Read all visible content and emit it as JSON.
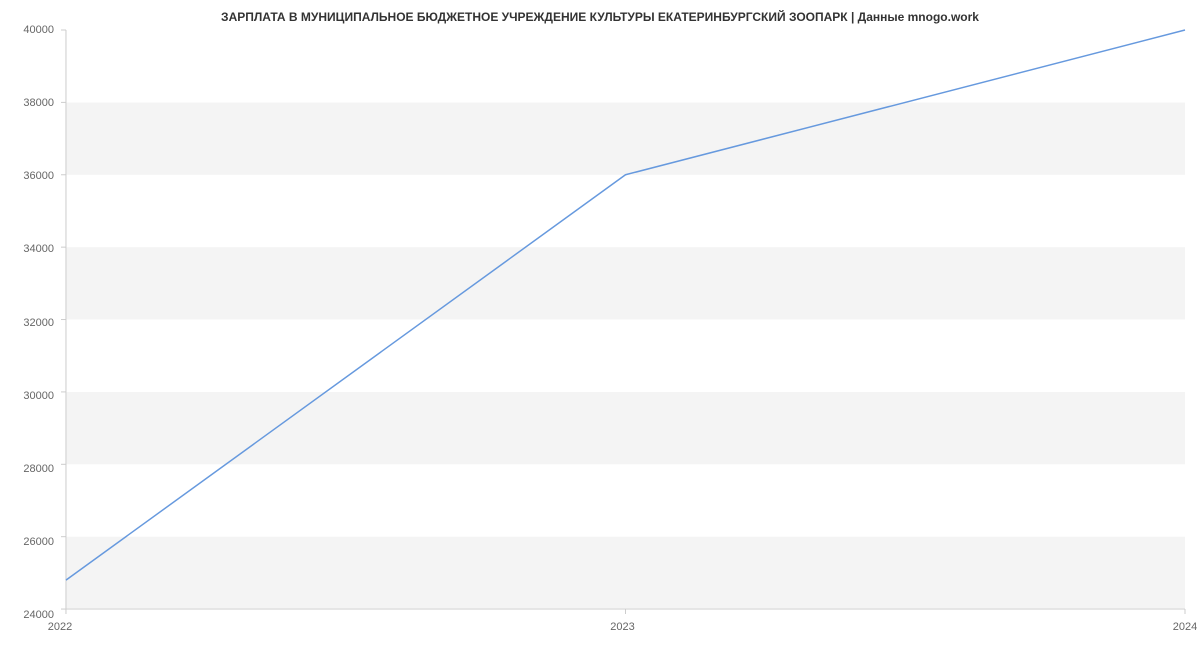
{
  "chart": {
    "type": "line",
    "title": "ЗАРПЛАТА В МУНИЦИПАЛЬНОЕ БЮДЖЕТНОЕ УЧРЕЖДЕНИЕ КУЛЬТУРЫ ЕКАТЕРИНБУРГСКИЙ ЗООПАРК | Данные mnogo.work",
    "title_fontsize": 12,
    "title_fontweight": "bold",
    "title_color": "#333333",
    "background_color": "#ffffff",
    "plot_background_alternating": true,
    "band_colors": [
      "#ffffff",
      "#f4f4f4"
    ],
    "axis_line_color": "#cccccc",
    "tick_color": "#cccccc",
    "tick_label_color": "#666666",
    "tick_label_fontsize": 11,
    "line_color": "#6699de",
    "line_width": 1.5,
    "x_categories": [
      "2022",
      "2023",
      "2024"
    ],
    "x_positions": [
      0,
      0.5,
      1.0
    ],
    "y_min": 24000,
    "y_max": 40000,
    "y_ticks": [
      24000,
      26000,
      28000,
      30000,
      32000,
      34000,
      36000,
      38000,
      40000
    ],
    "data_points": [
      {
        "x": 0.0,
        "y": 24800
      },
      {
        "x": 0.5,
        "y": 36000
      },
      {
        "x": 1.0,
        "y": 40000
      }
    ]
  }
}
